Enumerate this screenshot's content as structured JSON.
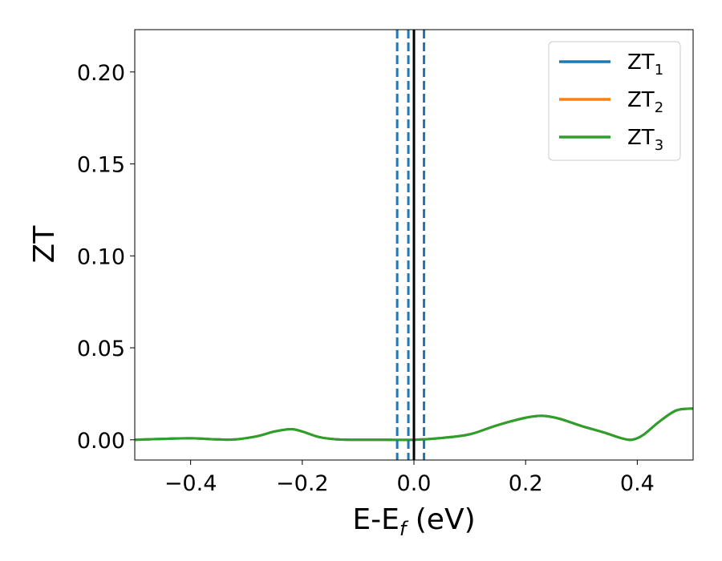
{
  "chart_data": {
    "type": "line",
    "xlabel": {
      "base": "E-E",
      "sub": "f",
      "suffix": " (eV)"
    },
    "ylabel": "ZT",
    "xlim": [
      -0.5,
      0.5
    ],
    "ylim": [
      -0.011,
      0.223
    ],
    "x_ticks": [
      -0.4,
      -0.2,
      0.0,
      0.2,
      0.4
    ],
    "x_tick_labels": [
      "−0.4",
      "−0.2",
      "0.0",
      "0.2",
      "0.4"
    ],
    "y_ticks": [
      0.0,
      0.05,
      0.1,
      0.15,
      0.2
    ],
    "y_tick_labels": [
      "0.00",
      "0.05",
      "0.10",
      "0.15",
      "0.20"
    ],
    "grid": false,
    "legend_position": "top-right",
    "x": [
      -0.5,
      -0.45,
      -0.4,
      -0.35,
      -0.32,
      -0.28,
      -0.25,
      -0.22,
      -0.2,
      -0.17,
      -0.14,
      -0.1,
      -0.05,
      0.0,
      0.05,
      0.1,
      0.15,
      0.2,
      0.23,
      0.26,
      0.3,
      0.34,
      0.37,
      0.39,
      0.41,
      0.44,
      0.47,
      0.5
    ],
    "series": [
      {
        "name": {
          "base": "ZT",
          "sub": "1"
        },
        "color": "#1f77b4",
        "values": [
          0.0,
          0.0005,
          0.0008,
          0.0002,
          0.0002,
          0.002,
          0.0045,
          0.0058,
          0.0045,
          0.0015,
          0.0003,
          0.0,
          0.0,
          0.0,
          0.001,
          0.003,
          0.008,
          0.012,
          0.013,
          0.0115,
          0.0075,
          0.004,
          0.001,
          0.0,
          0.0025,
          0.01,
          0.016,
          0.017
        ]
      },
      {
        "name": {
          "base": "ZT",
          "sub": "2"
        },
        "color": "#ff7f0e",
        "values": [
          0.0,
          0.0005,
          0.0008,
          0.0002,
          0.0002,
          0.002,
          0.0045,
          0.0058,
          0.0045,
          0.0015,
          0.0003,
          0.0,
          0.0,
          0.0,
          0.001,
          0.003,
          0.008,
          0.012,
          0.013,
          0.0115,
          0.0075,
          0.004,
          0.001,
          0.0,
          0.0025,
          0.01,
          0.016,
          0.017
        ]
      },
      {
        "name": {
          "base": "ZT",
          "sub": "3"
        },
        "color": "#2ca02c",
        "values": [
          0.0,
          0.0005,
          0.0008,
          0.0002,
          0.0002,
          0.002,
          0.0045,
          0.0058,
          0.0045,
          0.0015,
          0.0003,
          0.0,
          0.0,
          0.0,
          0.001,
          0.003,
          0.008,
          0.012,
          0.013,
          0.0115,
          0.0075,
          0.004,
          0.001,
          0.0,
          0.0025,
          0.01,
          0.016,
          0.017
        ]
      }
    ],
    "vertical_lines": [
      {
        "x": -0.03,
        "style": "dashed",
        "color": "#1f77b4"
      },
      {
        "x": -0.01,
        "style": "dashed",
        "color": "#1f77b4"
      },
      {
        "x": 0.018,
        "style": "dashed",
        "color": "#1f77b4"
      },
      {
        "x": 0.0,
        "style": "solid",
        "color": "#000000"
      }
    ]
  }
}
